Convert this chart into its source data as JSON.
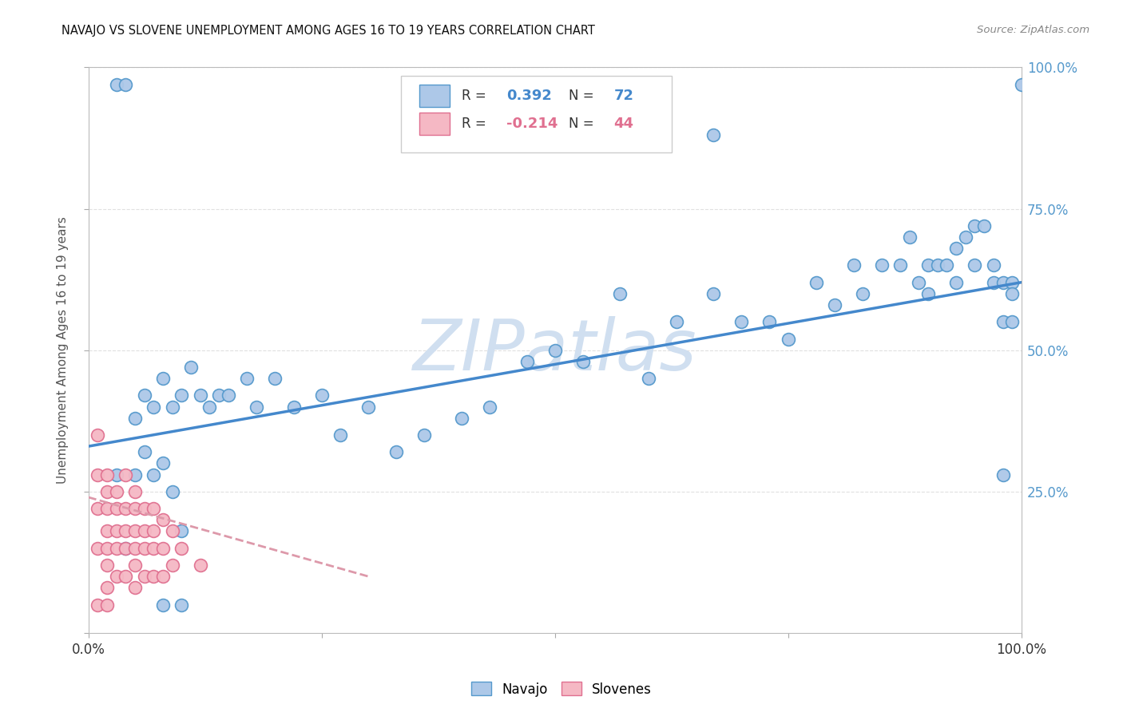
{
  "title": "NAVAJO VS SLOVENE UNEMPLOYMENT AMONG AGES 16 TO 19 YEARS CORRELATION CHART",
  "source": "Source: ZipAtlas.com",
  "ylabel": "Unemployment Among Ages 16 to 19 years",
  "legend_navajo": "Navajo",
  "legend_slovenes": "Slovenes",
  "navajo_R": 0.392,
  "navajo_N": 72,
  "slovene_R": -0.214,
  "slovene_N": 44,
  "navajo_color": "#adc8e8",
  "navajo_edge_color": "#5599cc",
  "slovene_color": "#f5b8c4",
  "slovene_edge_color": "#e07090",
  "navajo_line_color": "#4488cc",
  "slovene_line_color": "#dd99aa",
  "xlim": [
    0,
    1
  ],
  "ylim": [
    0,
    1
  ],
  "watermark": "ZIPatlas",
  "watermark_color": "#d0dff0",
  "background_color": "#ffffff",
  "grid_color": "#e0e0e0",
  "navajo_x": [
    0.03,
    0.04,
    0.05,
    0.05,
    0.06,
    0.06,
    0.07,
    0.07,
    0.08,
    0.08,
    0.09,
    0.09,
    0.1,
    0.1,
    0.11,
    0.12,
    0.13,
    0.14,
    0.15,
    0.17,
    0.18,
    0.2,
    0.22,
    0.25,
    0.27,
    0.3,
    0.33,
    0.36,
    0.4,
    0.43,
    0.47,
    0.5,
    0.53,
    0.57,
    0.6,
    0.63,
    0.67,
    0.7,
    0.73,
    0.75,
    0.78,
    0.8,
    0.82,
    0.83,
    0.85,
    0.87,
    0.88,
    0.89,
    0.9,
    0.9,
    0.91,
    0.92,
    0.93,
    0.93,
    0.94,
    0.95,
    0.95,
    0.96,
    0.97,
    0.97,
    0.98,
    0.98,
    0.99,
    0.99,
    0.99,
    1.0,
    0.03,
    0.04,
    0.08,
    0.1,
    0.67,
    0.98
  ],
  "navajo_y": [
    0.97,
    0.97,
    0.38,
    0.28,
    0.42,
    0.32,
    0.4,
    0.28,
    0.45,
    0.3,
    0.4,
    0.25,
    0.42,
    0.18,
    0.47,
    0.42,
    0.4,
    0.42,
    0.42,
    0.45,
    0.4,
    0.45,
    0.4,
    0.42,
    0.35,
    0.4,
    0.32,
    0.35,
    0.38,
    0.4,
    0.48,
    0.5,
    0.48,
    0.6,
    0.45,
    0.55,
    0.6,
    0.55,
    0.55,
    0.52,
    0.62,
    0.58,
    0.65,
    0.6,
    0.65,
    0.65,
    0.7,
    0.62,
    0.6,
    0.65,
    0.65,
    0.65,
    0.68,
    0.62,
    0.7,
    0.72,
    0.65,
    0.72,
    0.65,
    0.62,
    0.62,
    0.55,
    0.62,
    0.6,
    0.55,
    0.97,
    0.28,
    0.15,
    0.05,
    0.05,
    0.88,
    0.28
  ],
  "slovene_x": [
    0.01,
    0.01,
    0.01,
    0.01,
    0.02,
    0.02,
    0.02,
    0.02,
    0.02,
    0.02,
    0.02,
    0.03,
    0.03,
    0.03,
    0.03,
    0.03,
    0.04,
    0.04,
    0.04,
    0.04,
    0.04,
    0.05,
    0.05,
    0.05,
    0.05,
    0.05,
    0.05,
    0.06,
    0.06,
    0.06,
    0.06,
    0.07,
    0.07,
    0.07,
    0.07,
    0.08,
    0.08,
    0.08,
    0.09,
    0.09,
    0.1,
    0.12,
    0.01,
    0.02
  ],
  "slovene_y": [
    0.35,
    0.28,
    0.22,
    0.15,
    0.28,
    0.25,
    0.22,
    0.18,
    0.15,
    0.12,
    0.08,
    0.25,
    0.22,
    0.18,
    0.15,
    0.1,
    0.28,
    0.22,
    0.18,
    0.15,
    0.1,
    0.25,
    0.22,
    0.18,
    0.15,
    0.12,
    0.08,
    0.22,
    0.18,
    0.15,
    0.1,
    0.22,
    0.18,
    0.15,
    0.1,
    0.2,
    0.15,
    0.1,
    0.18,
    0.12,
    0.15,
    0.12,
    0.05,
    0.05
  ],
  "nav_line_x0": 0.0,
  "nav_line_x1": 1.0,
  "nav_line_y0": 0.33,
  "nav_line_y1": 0.62,
  "slov_line_x0": 0.0,
  "slov_line_x1": 0.3,
  "slov_line_y0": 0.24,
  "slov_line_y1": 0.1
}
